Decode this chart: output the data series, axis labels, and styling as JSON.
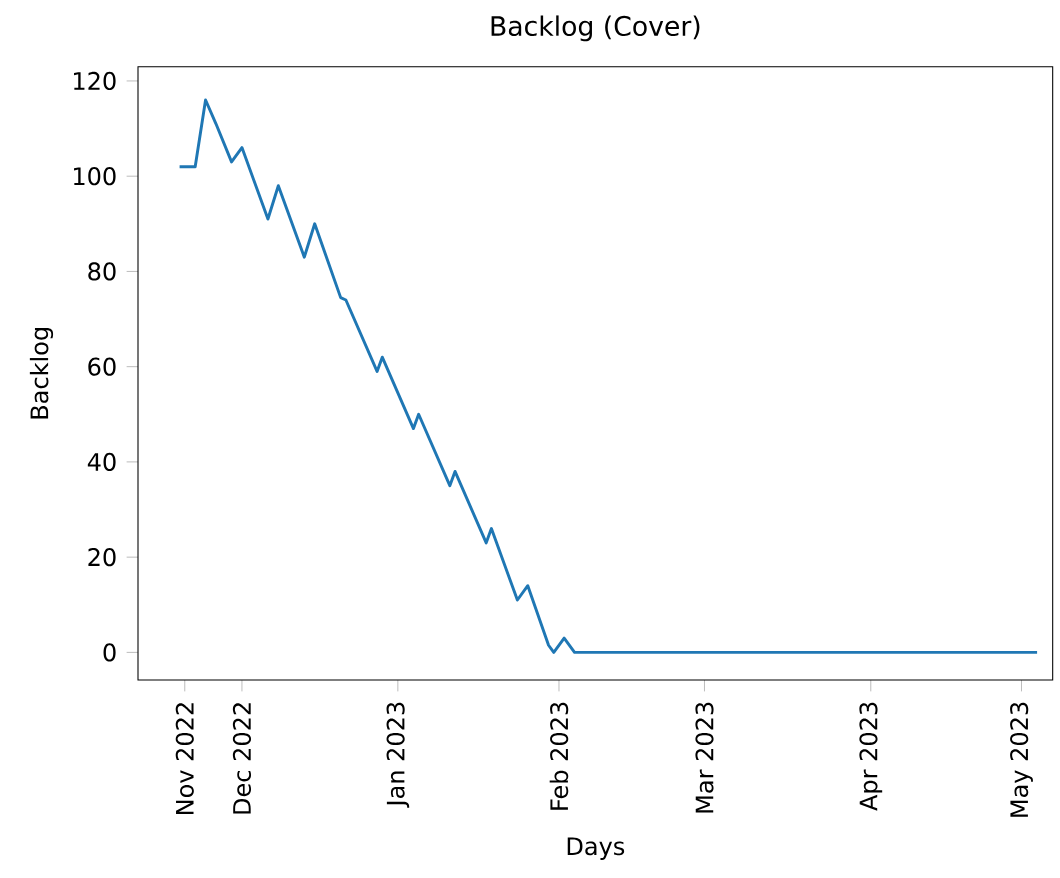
{
  "chart_data": {
    "type": "line",
    "title": "Backlog (Cover)",
    "xlabel": "Days",
    "ylabel": "Backlog",
    "x": [
      "2022-11-20",
      "2022-11-23",
      "2022-11-25",
      "2022-11-27",
      "2022-11-30",
      "2022-12-02",
      "2022-12-07",
      "2022-12-09",
      "2022-12-14",
      "2022-12-16",
      "2022-12-21",
      "2022-12-22",
      "2022-12-28",
      "2022-12-29",
      "2023-01-04",
      "2023-01-05",
      "2023-01-11",
      "2023-01-12",
      "2023-01-18",
      "2023-01-19",
      "2023-01-24",
      "2023-01-26",
      "2023-01-30",
      "2023-01-31",
      "2023-02-02",
      "2023-02-04",
      "2023-05-04"
    ],
    "series": [
      {
        "color": "#1f77b4",
        "values": [
          102,
          102,
          116,
          111,
          103,
          106,
          91,
          98,
          83,
          90,
          74.5,
          74,
          59,
          62,
          47,
          50,
          35,
          38,
          23,
          26,
          11,
          14,
          1.5,
          0,
          3,
          0,
          0
        ]
      }
    ],
    "xlim": [
      "2022-11-12",
      "2023-05-07"
    ],
    "xticks": [
      {
        "value": "2022-11-21",
        "label": "Nov 2022"
      },
      {
        "value": "2022-12-02",
        "label": "Dec 2022"
      },
      {
        "value": "2023-01-01",
        "label": "Jan 2023"
      },
      {
        "value": "2023-02-01",
        "label": "Feb 2023"
      },
      {
        "value": "2023-03-01",
        "label": "Mar 2023"
      },
      {
        "value": "2023-04-02",
        "label": "Apr 2023"
      },
      {
        "value": "2023-05-01",
        "label": "May 2023"
      }
    ],
    "ylim": [
      -5.8,
      123
    ],
    "yticks": [
      0,
      20,
      40,
      60,
      80,
      100,
      120
    ],
    "grid": false
  }
}
